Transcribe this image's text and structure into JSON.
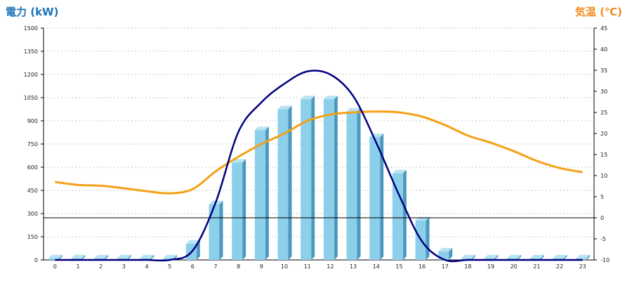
{
  "chart_data": {
    "type": "bar",
    "y_left_label": "電力 (kW)",
    "y_right_label": "気温 (℃)",
    "categories": [
      "0",
      "1",
      "2",
      "3",
      "4",
      "5",
      "6",
      "7",
      "8",
      "9",
      "10",
      "11",
      "12",
      "13",
      "14",
      "15",
      "16",
      "17",
      "18",
      "19",
      "20",
      "21",
      "22",
      "23"
    ],
    "ylim_left": [
      0,
      1500
    ],
    "ylim_right": [
      -10,
      45
    ],
    "left_ticks": [
      "0",
      "150",
      "300",
      "450",
      "600",
      "750",
      "900",
      "1050",
      "1200",
      "1350",
      "1500"
    ],
    "right_ticks": [
      "-10",
      "-5",
      "0",
      "5",
      "10",
      "15",
      "20",
      "25",
      "30",
      "35",
      "40",
      "45"
    ],
    "grid": true,
    "series": [
      {
        "kind": "bar",
        "axis": "left",
        "values": [
          10,
          10,
          10,
          10,
          10,
          10,
          105,
          360,
          630,
          840,
          975,
          1040,
          1040,
          960,
          795,
          560,
          255,
          55,
          10,
          10,
          10,
          10,
          10,
          10
        ]
      },
      {
        "kind": "line",
        "axis": "left",
        "values": [
          0,
          0,
          0,
          0,
          0,
          0,
          60,
          370,
          830,
          1020,
          1140,
          1220,
          1200,
          1060,
          760,
          420,
          120,
          0,
          0,
          0,
          0,
          0,
          0,
          0
        ]
      },
      {
        "kind": "line",
        "axis": "right",
        "values": [
          8.5,
          7.8,
          7.6,
          7.0,
          6.3,
          5.8,
          6.8,
          11.0,
          14.5,
          17.5,
          20.0,
          23.0,
          24.5,
          25.0,
          25.2,
          25.0,
          24.0,
          22.0,
          19.5,
          17.8,
          15.8,
          13.5,
          11.8,
          10.8
        ]
      }
    ],
    "colors": {
      "bar_front": "#8ccfea",
      "bar_top": "#b7e3f3",
      "bar_side": "#4d98bd",
      "power_line": "#000080",
      "temp_line": "#f5a117",
      "zero_line": "#000000",
      "grid": "#c8c8c8",
      "label_left": "#1a73b8",
      "label_right": "#f08c1e"
    }
  }
}
